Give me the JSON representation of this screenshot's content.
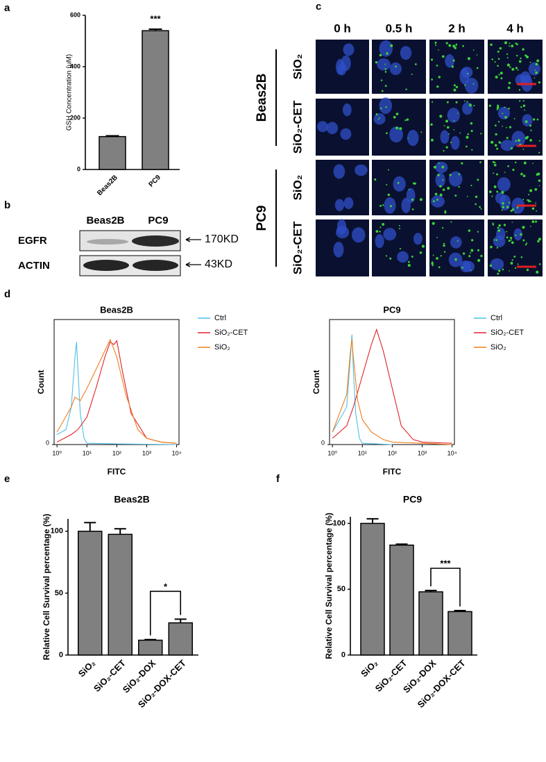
{
  "chart_data": [
    {
      "panel": "a",
      "type": "bar",
      "ylabel": "GSH Concentration (μM)",
      "categories": [
        "Beas2B",
        "PC9"
      ],
      "values": [
        128,
        540
      ],
      "errors": [
        3,
        6
      ],
      "color": "#808080",
      "ylim": [
        0,
        600
      ],
      "yticks": [
        0,
        200,
        400,
        600
      ],
      "significance": [
        {
          "label": "***",
          "pair": [
            "PC9"
          ]
        }
      ]
    },
    {
      "panel": "d",
      "type": "line",
      "title": "Beas2B",
      "xlabel": "FITC",
      "ylabel": "Count",
      "xscale": "log",
      "xlim": [
        0.8,
        12000
      ],
      "xticks": [
        {
          "value": 1,
          "label": "10⁰"
        },
        {
          "value": 10,
          "label": "10¹"
        },
        {
          "value": 100,
          "label": "10²"
        },
        {
          "value": 1000,
          "label": "10³"
        },
        {
          "value": 10000,
          "label": "10⁴"
        }
      ],
      "ylim": [
        0,
        100
      ],
      "yticks": [
        0
      ],
      "series": [
        {
          "name": "Ctrl",
          "color": "#4fbfe6",
          "x": [
            1,
            2,
            3,
            4,
            4.5,
            5,
            6,
            8,
            10,
            100,
            10000
          ],
          "values": [
            8,
            12,
            30,
            70,
            82,
            60,
            25,
            5,
            1,
            0.5,
            0
          ]
        },
        {
          "name": "SiO₂-CET",
          "color": "#e0202a",
          "x": [
            1,
            3,
            5,
            10,
            20,
            40,
            60,
            80,
            100,
            150,
            300,
            1000,
            3000,
            10000
          ],
          "values": [
            2,
            8,
            12,
            22,
            45,
            70,
            82,
            80,
            83,
            60,
            25,
            5,
            2,
            1
          ]
        },
        {
          "name": "SiO₂",
          "color": "#f07d1a",
          "x": [
            1,
            3,
            4,
            6,
            10,
            20,
            40,
            60,
            100,
            200,
            500,
            1000,
            3000,
            10000
          ],
          "values": [
            10,
            30,
            38,
            35,
            45,
            60,
            75,
            84,
            70,
            40,
            12,
            5,
            2,
            1
          ]
        }
      ]
    },
    {
      "type": "line",
      "title": "PC9",
      "xlabel": "FITC",
      "ylabel": "Count",
      "xscale": "log",
      "xlim": [
        0.8,
        12000
      ],
      "xticks": [
        {
          "value": 1,
          "label": "10⁰"
        },
        {
          "value": 10,
          "label": "10¹"
        },
        {
          "value": 100,
          "label": "10²"
        },
        {
          "value": 1000,
          "label": "10³"
        },
        {
          "value": 10000,
          "label": "10⁴"
        }
      ],
      "ylim": [
        0,
        100
      ],
      "yticks": [
        0
      ],
      "series": [
        {
          "name": "Ctrl",
          "color": "#4fbfe6",
          "x": [
            1,
            3,
            4,
            4.5,
            5,
            6,
            8,
            10,
            100
          ],
          "values": [
            10,
            30,
            70,
            88,
            60,
            25,
            5,
            1,
            0
          ]
        },
        {
          "name": "SiO₂-CET",
          "color": "#e0202a",
          "x": [
            1,
            3,
            5,
            10,
            20,
            30,
            50,
            100,
            200,
            500,
            1000,
            10000
          ],
          "values": [
            5,
            15,
            30,
            55,
            80,
            92,
            75,
            45,
            15,
            4,
            2,
            1
          ]
        },
        {
          "name": "SiO₂",
          "color": "#f07d1a",
          "x": [
            1,
            3,
            4,
            4.5,
            5,
            7,
            10,
            20,
            50,
            100,
            1000,
            10000
          ],
          "values": [
            10,
            40,
            75,
            84,
            70,
            35,
            20,
            10,
            4,
            2,
            1,
            0
          ]
        }
      ]
    },
    {
      "panel": "e",
      "type": "bar",
      "title": "Beas2B",
      "ylabel": "Relative Cell Survival percentage (%)",
      "categories": [
        "SiO₂",
        "SiO₂-CET",
        "SiO₂-DOX",
        "SiO₂-DOX-CET"
      ],
      "values": [
        100,
        97.5,
        12,
        26
      ],
      "errors": [
        7,
        4.5,
        0.5,
        3
      ],
      "color": "#808080",
      "ylim": [
        0,
        110
      ],
      "yticks": [
        0,
        50,
        100
      ],
      "significance": [
        {
          "label": "*",
          "pair": [
            "SiO₂-DOX",
            "SiO₂-DOX-CET"
          ]
        }
      ]
    },
    {
      "panel": "f",
      "type": "bar",
      "title": "PC9",
      "ylabel": "Relative Cell Survival percentage (%)",
      "categories": [
        "SiO₂",
        "SiO₂-CET",
        "SiO₂-DOX",
        "SiO₂-DOX-CET"
      ],
      "values": [
        100,
        83.5,
        48,
        33
      ],
      "errors": [
        3.5,
        0.7,
        1,
        0.8
      ],
      "color": "#808080",
      "ylim": [
        0,
        105
      ],
      "yticks": [
        0,
        50,
        100
      ],
      "significance": [
        {
          "label": "***",
          "pair": [
            "SiO₂-DOX",
            "SiO₂-DOX-CET"
          ]
        }
      ]
    }
  ],
  "blot": {
    "panel": "b",
    "columns": [
      "Beas2B",
      "PC9"
    ],
    "rows": [
      {
        "name": "EGFR",
        "size": "170KD"
      },
      {
        "name": "ACTIN",
        "size": "43KD"
      }
    ]
  },
  "microscopy": {
    "panel": "c",
    "columns": [
      "0 h",
      "0.5 h",
      "2 h",
      "4 h"
    ],
    "groups": [
      {
        "name": "Beas2B",
        "rows": [
          "SiO₂",
          "SiO₂-CET"
        ]
      },
      {
        "name": "PC9",
        "rows": [
          "SiO₂",
          "SiO₂-CET"
        ]
      }
    ]
  }
}
